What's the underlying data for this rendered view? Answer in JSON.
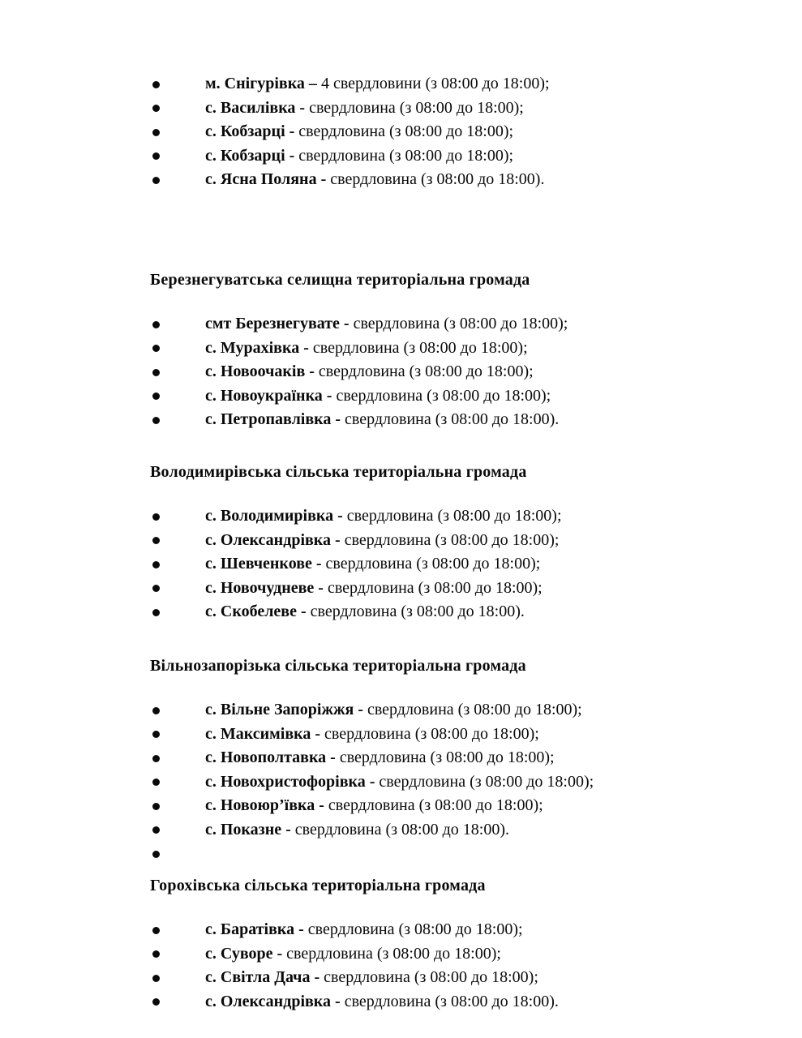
{
  "page": {
    "background_color": "#ffffff",
    "text_color": "#0a0a0a",
    "bullet_icon": "filled-circle"
  },
  "document": {
    "sections": [
      {
        "heading": "",
        "items": [
          {
            "name": "м. Снігурівка –",
            "details": " 4 свердловини (з 08:00 до 18:00);"
          },
          {
            "name": "с. Василівка -",
            "details": " свердловина (з 08:00 до 18:00);"
          },
          {
            "name": "с. Кобзарці -",
            "details": " свердловина (з 08:00 до 18:00);"
          },
          {
            "name": "с. Кобзарці -",
            "details": " свердловина (з 08:00 до 18:00);"
          },
          {
            "name": "с. Ясна Поляна -",
            "details": " свердловина (з 08:00 до 18:00)."
          }
        ]
      },
      {
        "heading": "Березнегуватська селищна територіальна громада",
        "items": [
          {
            "name": "смт Березнегувате -",
            "details": " свердловина (з 08:00 до 18:00);"
          },
          {
            "name": "с. Мурахівка -",
            "details": " свердловина (з 08:00 до 18:00);"
          },
          {
            "name": "с. Новоочаків -",
            "details": " свердловина (з 08:00 до 18:00);"
          },
          {
            "name": "с. Новоукраїнка -",
            "details": " свердловина (з 08:00 до 18:00);"
          },
          {
            "name": "с. Петропавлівка -",
            "details": " свердловина (з 08:00 до 18:00)."
          }
        ]
      },
      {
        "heading": "Володимирівська сільська територіальна громада",
        "items": [
          {
            "name": "с. Володимирівка -",
            "details": " свердловина (з 08:00 до 18:00);"
          },
          {
            "name": "с. Олександрівка -",
            "details": " свердловина (з 08:00 до 18:00);"
          },
          {
            "name": "с. Шевченкове -",
            "details": " свердловина (з 08:00 до 18:00);"
          },
          {
            "name": "с. Новочудневе -",
            "details": " свердловина (з 08:00 до 18:00);"
          },
          {
            "name": "с. Скобелеве -",
            "details": " свердловина (з 08:00 до 18:00)."
          }
        ]
      },
      {
        "heading": "Вільнозапорізька сільська територіальна громада",
        "items": [
          {
            "name": "с. Вільне Запоріжжя -",
            "details": " свердловина (з 08:00 до 18:00);"
          },
          {
            "name": "с. Максимівка -",
            "details": " свердловина (з 08:00 до 18:00);"
          },
          {
            "name": "с. Новополтавка -",
            "details": " свердловина (з 08:00 до 18:00);"
          },
          {
            "name": "с. Новохристофорівка -",
            "details": " свердловина (з 08:00 до 18:00);"
          },
          {
            "name": "с. Новоюр’ївка -",
            "details": " свердловина (з 08:00 до 18:00);"
          },
          {
            "name": "с. Показне -",
            "details": " свердловина (з 08:00 до 18:00)."
          },
          {
            "name": "",
            "details": ""
          }
        ]
      },
      {
        "heading": "Горохівська сільська територіальна громада",
        "items": [
          {
            "name": "с. Баратівка -",
            "details": " свердловина (з 08:00 до 18:00);"
          },
          {
            "name": "с. Суворе -",
            "details": " свердловина (з 08:00 до 18:00);"
          },
          {
            "name": "с. Світла Дача -",
            "details": " свердловина (з 08:00 до 18:00);"
          },
          {
            "name": "с. Олександрівка -",
            "details": " свердловина (з 08:00 до 18:00)."
          }
        ]
      }
    ]
  }
}
